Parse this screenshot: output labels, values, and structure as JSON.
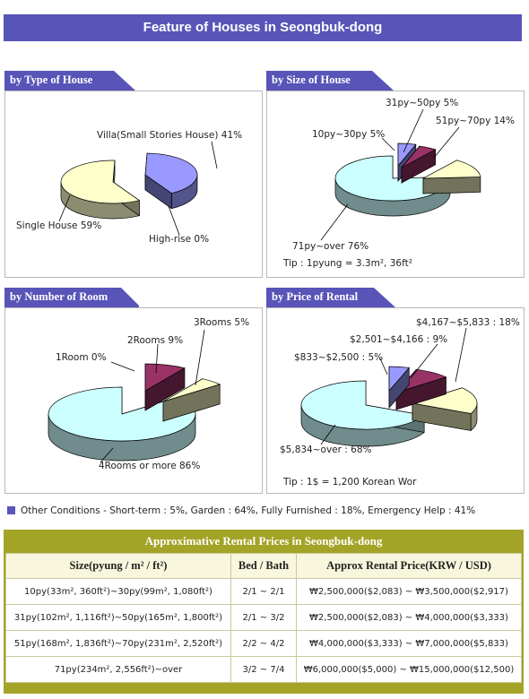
{
  "page": {
    "title": "Feature of Houses in Seongbuk-dong"
  },
  "colors": {
    "accent": "#5854b8",
    "table_bar": "#a3a327",
    "table_header": "#f8f7dd"
  },
  "chart_data": [
    {
      "type": "pie",
      "title": "by Type of House",
      "slices": [
        {
          "label": "Villa(Small Stories House) 41%",
          "value": 41,
          "color": "#9999ff"
        },
        {
          "label": "High-rise 0%",
          "value": 0,
          "color": "#993366"
        },
        {
          "label": "Single House 59%",
          "value": 59,
          "color": "#ffffcc"
        }
      ]
    },
    {
      "type": "pie",
      "title": "by Size of House",
      "note": "Tip : 1pyung = 3.3m², 36ft²",
      "slices": [
        {
          "label": "10py~30py 5%",
          "value": 5,
          "color": "#9999ff"
        },
        {
          "label": "31py~50py 5%",
          "value": 5,
          "color": "#993366"
        },
        {
          "label": "51py~70py 14%",
          "value": 14,
          "color": "#ffffcc"
        },
        {
          "label": "71py~over 76%",
          "value": 76,
          "color": "#ccffff"
        }
      ]
    },
    {
      "type": "pie",
      "title": "by Number of Room",
      "slices": [
        {
          "label": "1Room 0%",
          "value": 0,
          "color": "#9999ff"
        },
        {
          "label": "2Rooms 9%",
          "value": 9,
          "color": "#993366"
        },
        {
          "label": "3Rooms 5%",
          "value": 5,
          "color": "#ffffcc"
        },
        {
          "label": "4Rooms or more 86%",
          "value": 86,
          "color": "#ccffff"
        }
      ]
    },
    {
      "type": "pie",
      "title": "by Price of Rental",
      "note": "Tip : 1$ = 1,200 Korean Wor",
      "slices": [
        {
          "label": "$833~$2,500 : 5%",
          "value": 5,
          "color": "#9999ff"
        },
        {
          "label": "$2,501~$4,166 : 9%",
          "value": 9,
          "color": "#993366"
        },
        {
          "label": "$4,167~$5,833 : 18%",
          "value": 18,
          "color": "#ffffcc"
        },
        {
          "label": "$5,834~over : 68%",
          "value": 68,
          "color": "#ccffff"
        }
      ]
    }
  ],
  "other_conditions": "Other Conditions - Short-term : 5%, Garden : 64%, Fully Furnished : 18%, Emergency Help : 41%",
  "rental_table": {
    "title": "Approximative Rental Prices in Seongbuk-dong",
    "headers": [
      "Size(pyung / m² / ft²)",
      "Bed / Bath",
      "Approx Rental Price(KRW / USD)"
    ],
    "rows": [
      [
        "10py(33m², 360ft²)~30py(99m², 1,080ft²)",
        "2/1 ~ 2/1",
        "₩2,500,000($2,083) ~ ₩3,500,000($2,917)"
      ],
      [
        "31py(102m², 1,116ft²)~50py(165m², 1,800ft²)",
        "2/1 ~ 3/2",
        "₩2,500,000($2,083) ~ ₩4,000,000($3,333)"
      ],
      [
        "51py(168m², 1,836ft²)~70py(231m², 2,520ft²)",
        "2/2 ~ 4/2",
        "₩4,000,000($3,333) ~ ₩7,000,000($5,833)"
      ],
      [
        "71py(234m², 2,556ft²)~over",
        "3/2 ~ 7/4",
        "₩6,000,000($5,000) ~ ₩15,000,000($12,500)"
      ]
    ]
  }
}
